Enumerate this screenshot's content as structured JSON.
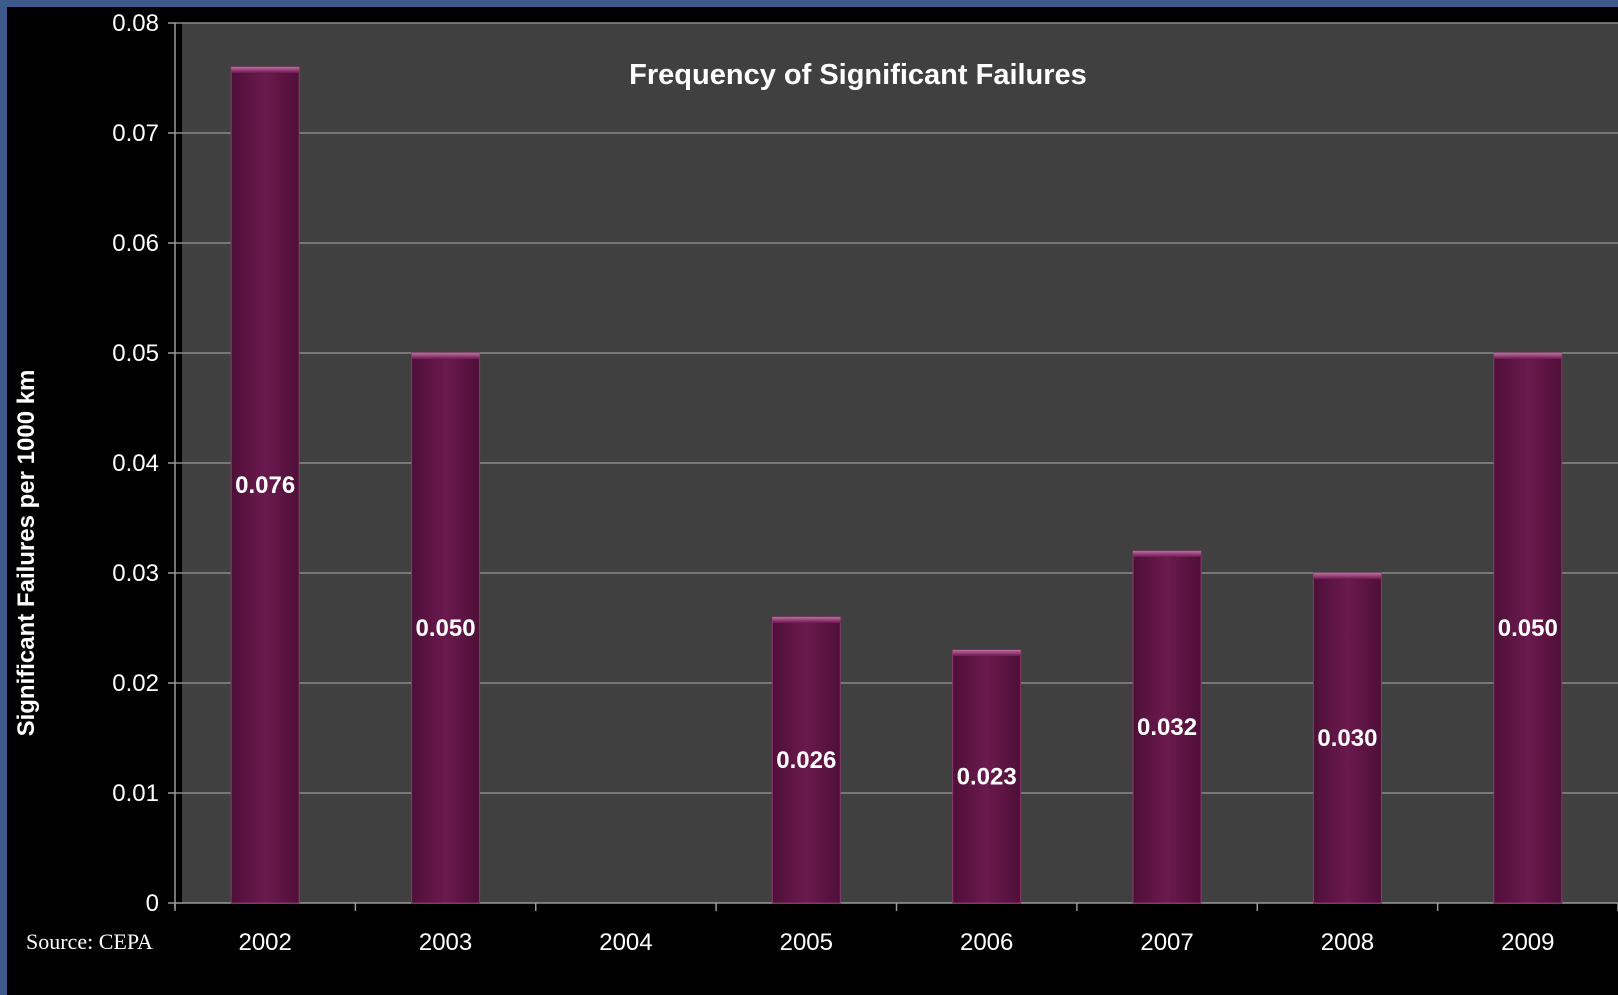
{
  "chart_data": {
    "type": "bar",
    "title": "Frequency of Significant Failures",
    "xlabel": "",
    "ylabel": "Significant Failures per 1000 km",
    "categories": [
      "2002",
      "2003",
      "2004",
      "2005",
      "2006",
      "2007",
      "2008",
      "2009"
    ],
    "values": [
      0.076,
      0.05,
      null,
      0.026,
      0.023,
      0.032,
      0.03,
      0.05
    ],
    "data_labels": [
      "0.076",
      "0.050",
      "",
      "0.026",
      "0.023",
      "0.032",
      "0.030",
      "0.050"
    ],
    "ylim": [
      0,
      0.08
    ],
    "yticks": [
      0,
      0.01,
      0.02,
      0.03,
      0.04,
      0.05,
      0.06,
      0.07,
      0.08
    ],
    "ytick_labels": [
      "0",
      "0.01",
      "0.02",
      "0.03",
      "0.04",
      "0.05",
      "0.06",
      "0.07",
      "0.08"
    ],
    "grid": true,
    "legend": "none",
    "colors": {
      "bar": "#6b1a4e",
      "bar_edge": "#8a3a6e",
      "plot_background": "#404040",
      "page_background": "#000000",
      "frame": "#3d5a8a",
      "gridline": "#8a8a8a",
      "text": "#ffffff"
    }
  },
  "source": "Source: CEPA"
}
